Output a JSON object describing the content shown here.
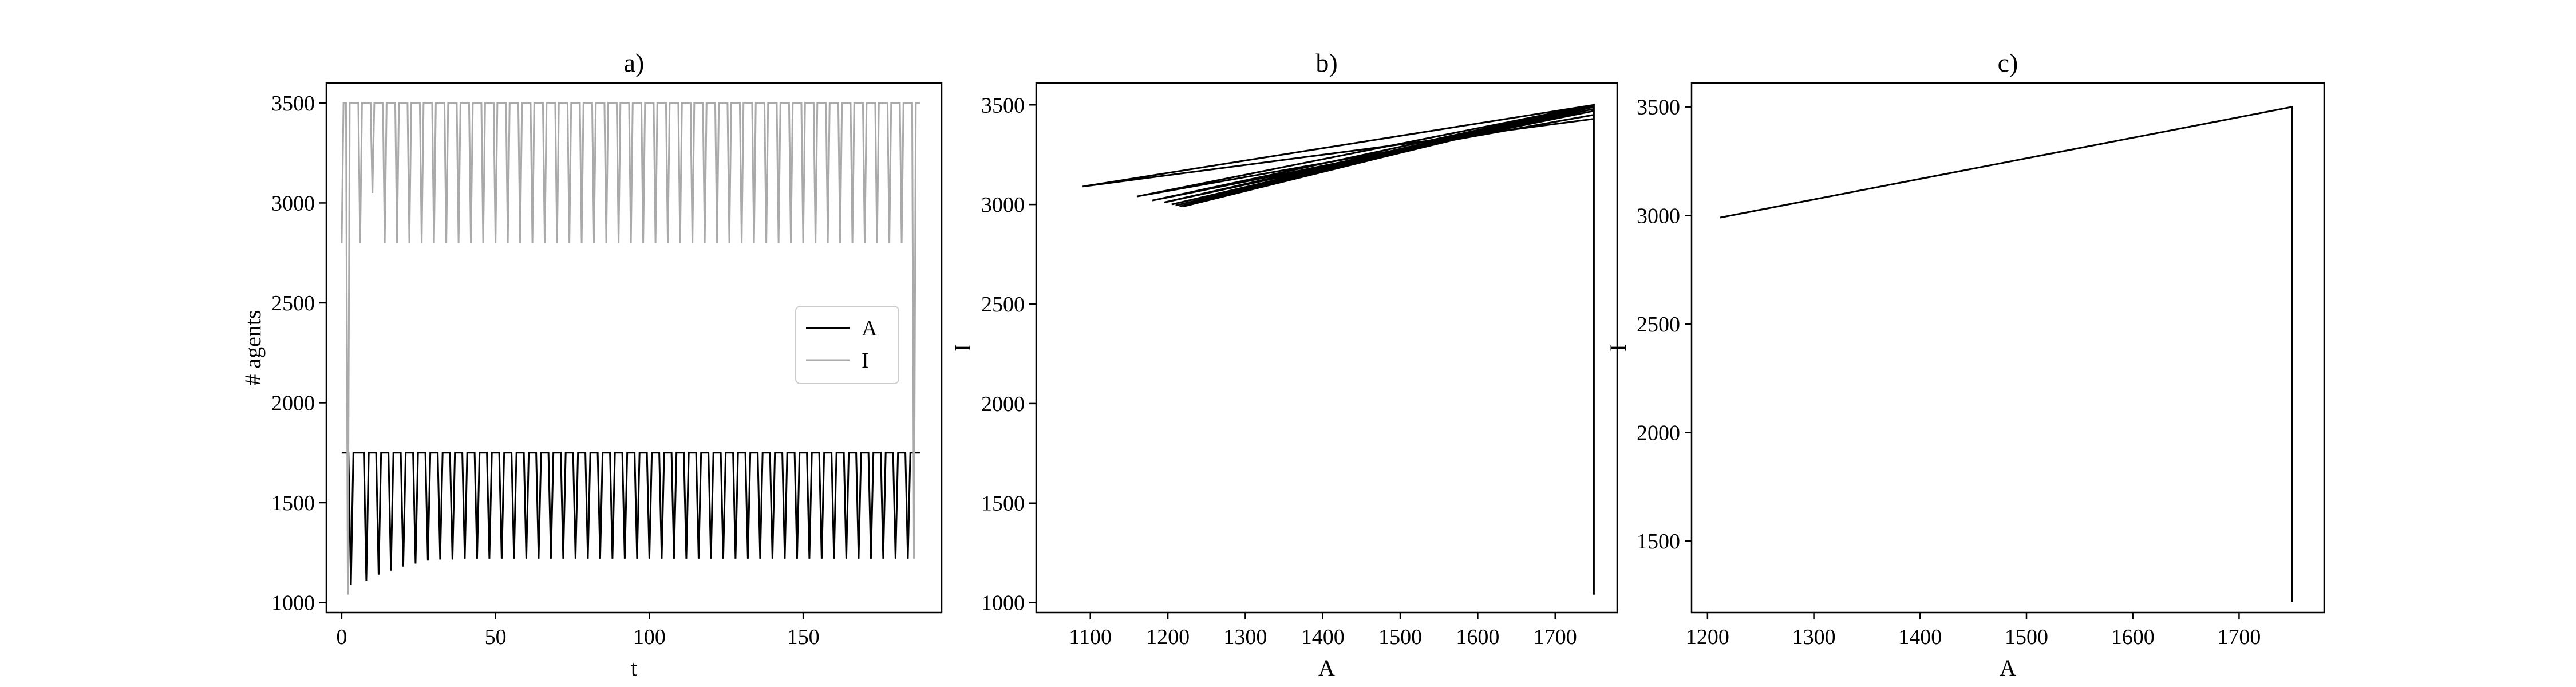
{
  "chart_data": [
    {
      "type": "line",
      "title": "a)",
      "xlabel": "t",
      "ylabel": "# agents",
      "xlim": [
        -5,
        195
      ],
      "ylim": [
        950,
        3600
      ],
      "xticks": [
        0,
        50,
        100,
        150
      ],
      "yticks": [
        1000,
        1500,
        2000,
        2500,
        3000,
        3500
      ],
      "grid": false,
      "legend": {
        "placement": "center-right",
        "entries": [
          "A",
          "I"
        ]
      },
      "series": [
        {
          "name": "A",
          "color": "#000000",
          "plateau": 1750,
          "start": [
            0,
            1750
          ],
          "minima": [
            [
              3,
              1090
            ],
            [
              8,
              1110
            ],
            [
              12,
              1140
            ],
            [
              16,
              1160
            ],
            [
              20,
              1180
            ],
            [
              24,
              1195
            ],
            [
              28,
              1210
            ],
            [
              32,
              1215
            ],
            [
              36,
              1215
            ],
            [
              40,
              1220
            ],
            [
              44,
              1220
            ],
            [
              48,
              1220
            ],
            [
              52,
              1220
            ],
            [
              56,
              1220
            ],
            [
              60,
              1220
            ],
            [
              64,
              1220
            ],
            [
              68,
              1220
            ],
            [
              72,
              1220
            ],
            [
              76,
              1220
            ],
            [
              80,
              1220
            ],
            [
              84,
              1220
            ],
            [
              88,
              1220
            ],
            [
              92,
              1220
            ],
            [
              96,
              1220
            ],
            [
              100,
              1220
            ],
            [
              104,
              1220
            ],
            [
              108,
              1220
            ],
            [
              112,
              1220
            ],
            [
              116,
              1220
            ],
            [
              120,
              1220
            ],
            [
              124,
              1220
            ],
            [
              128,
              1220
            ],
            [
              132,
              1220
            ],
            [
              136,
              1220
            ],
            [
              140,
              1220
            ],
            [
              144,
              1220
            ],
            [
              148,
              1220
            ],
            [
              152,
              1220
            ],
            [
              156,
              1220
            ],
            [
              160,
              1220
            ],
            [
              164,
              1220
            ],
            [
              168,
              1220
            ],
            [
              172,
              1220
            ],
            [
              176,
              1220
            ],
            [
              180,
              1220
            ],
            [
              184,
              1220
            ]
          ],
          "end": [
            188,
            1750
          ]
        },
        {
          "name": "I",
          "color": "#aaaaaa",
          "peak": 3500,
          "start": [
            0,
            2800
          ],
          "drops": [
            [
              2,
              1040
            ],
            [
              6,
              2800
            ],
            [
              10,
              3050
            ],
            [
              14,
              2800
            ],
            [
              18,
              2800
            ],
            [
              22,
              2800
            ],
            [
              26,
              2800
            ],
            [
              30,
              2800
            ],
            [
              34,
              2800
            ],
            [
              38,
              2800
            ],
            [
              42,
              2800
            ],
            [
              46,
              2800
            ],
            [
              50,
              2800
            ],
            [
              54,
              2800
            ],
            [
              58,
              2800
            ],
            [
              62,
              2800
            ],
            [
              66,
              2800
            ],
            [
              70,
              2800
            ],
            [
              74,
              2800
            ],
            [
              78,
              2800
            ],
            [
              82,
              2800
            ],
            [
              86,
              2800
            ],
            [
              90,
              2800
            ],
            [
              94,
              2800
            ],
            [
              98,
              2800
            ],
            [
              102,
              2800
            ],
            [
              106,
              2800
            ],
            [
              110,
              2800
            ],
            [
              114,
              2800
            ],
            [
              118,
              2800
            ],
            [
              122,
              2800
            ],
            [
              126,
              2800
            ],
            [
              130,
              2800
            ],
            [
              134,
              2800
            ],
            [
              138,
              2800
            ],
            [
              142,
              2800
            ],
            [
              146,
              2800
            ],
            [
              150,
              2800
            ],
            [
              154,
              2800
            ],
            [
              158,
              2800
            ],
            [
              162,
              2800
            ],
            [
              166,
              2800
            ],
            [
              170,
              2800
            ],
            [
              174,
              2800
            ],
            [
              178,
              2800
            ],
            [
              182,
              2800
            ],
            [
              186,
              1220
            ]
          ],
          "end": [
            188,
            3500
          ]
        }
      ]
    },
    {
      "type": "line",
      "title": "b)",
      "xlabel": "A",
      "ylabel": "I",
      "xlim": [
        1030,
        1780
      ],
      "ylim": [
        950,
        3610
      ],
      "xticks": [
        1100,
        1200,
        1300,
        1400,
        1500,
        1600,
        1700
      ],
      "yticks": [
        1000,
        1500,
        2000,
        2500,
        3000,
        3500
      ],
      "grid": false,
      "series": [
        {
          "color": "#000000",
          "points": [
            [
              1750,
              1040
            ],
            [
              1750,
              3500
            ],
            [
              1090,
              3090
            ],
            [
              1750,
              3430
            ],
            [
              1750,
              3500
            ],
            [
              1160,
              3040
            ],
            [
              1750,
              3450
            ],
            [
              1750,
              3500
            ],
            [
              1180,
              3020
            ],
            [
              1750,
              3470
            ],
            [
              1750,
              3500
            ],
            [
              1195,
              3010
            ],
            [
              1750,
              3480
            ],
            [
              1750,
              3500
            ],
            [
              1205,
              3000
            ],
            [
              1570,
              3330
            ],
            [
              1750,
              3490
            ],
            [
              1750,
              3500
            ],
            [
              1210,
              2995
            ],
            [
              1750,
              3490
            ],
            [
              1750,
              3500
            ],
            [
              1215,
              2990
            ],
            [
              1750,
              3495
            ],
            [
              1750,
              3500
            ],
            [
              1220,
              2990
            ],
            [
              1750,
              3500
            ],
            [
              1750,
              1220
            ]
          ]
        }
      ]
    },
    {
      "type": "line",
      "title": "c)",
      "xlabel": "A",
      "ylabel": "I",
      "xlim": [
        1185,
        1780
      ],
      "ylim": [
        1170,
        3610
      ],
      "xticks": [
        1200,
        1300,
        1400,
        1500,
        1600,
        1700
      ],
      "yticks": [
        1500,
        2000,
        2500,
        3000,
        3500
      ],
      "grid": false,
      "series": [
        {
          "color": "#000000",
          "points": [
            [
              1750,
              1220
            ],
            [
              1750,
              3500
            ],
            [
              1212,
              2990
            ],
            [
              1750,
              3500
            ],
            [
              1750,
              1220
            ]
          ]
        }
      ]
    }
  ]
}
